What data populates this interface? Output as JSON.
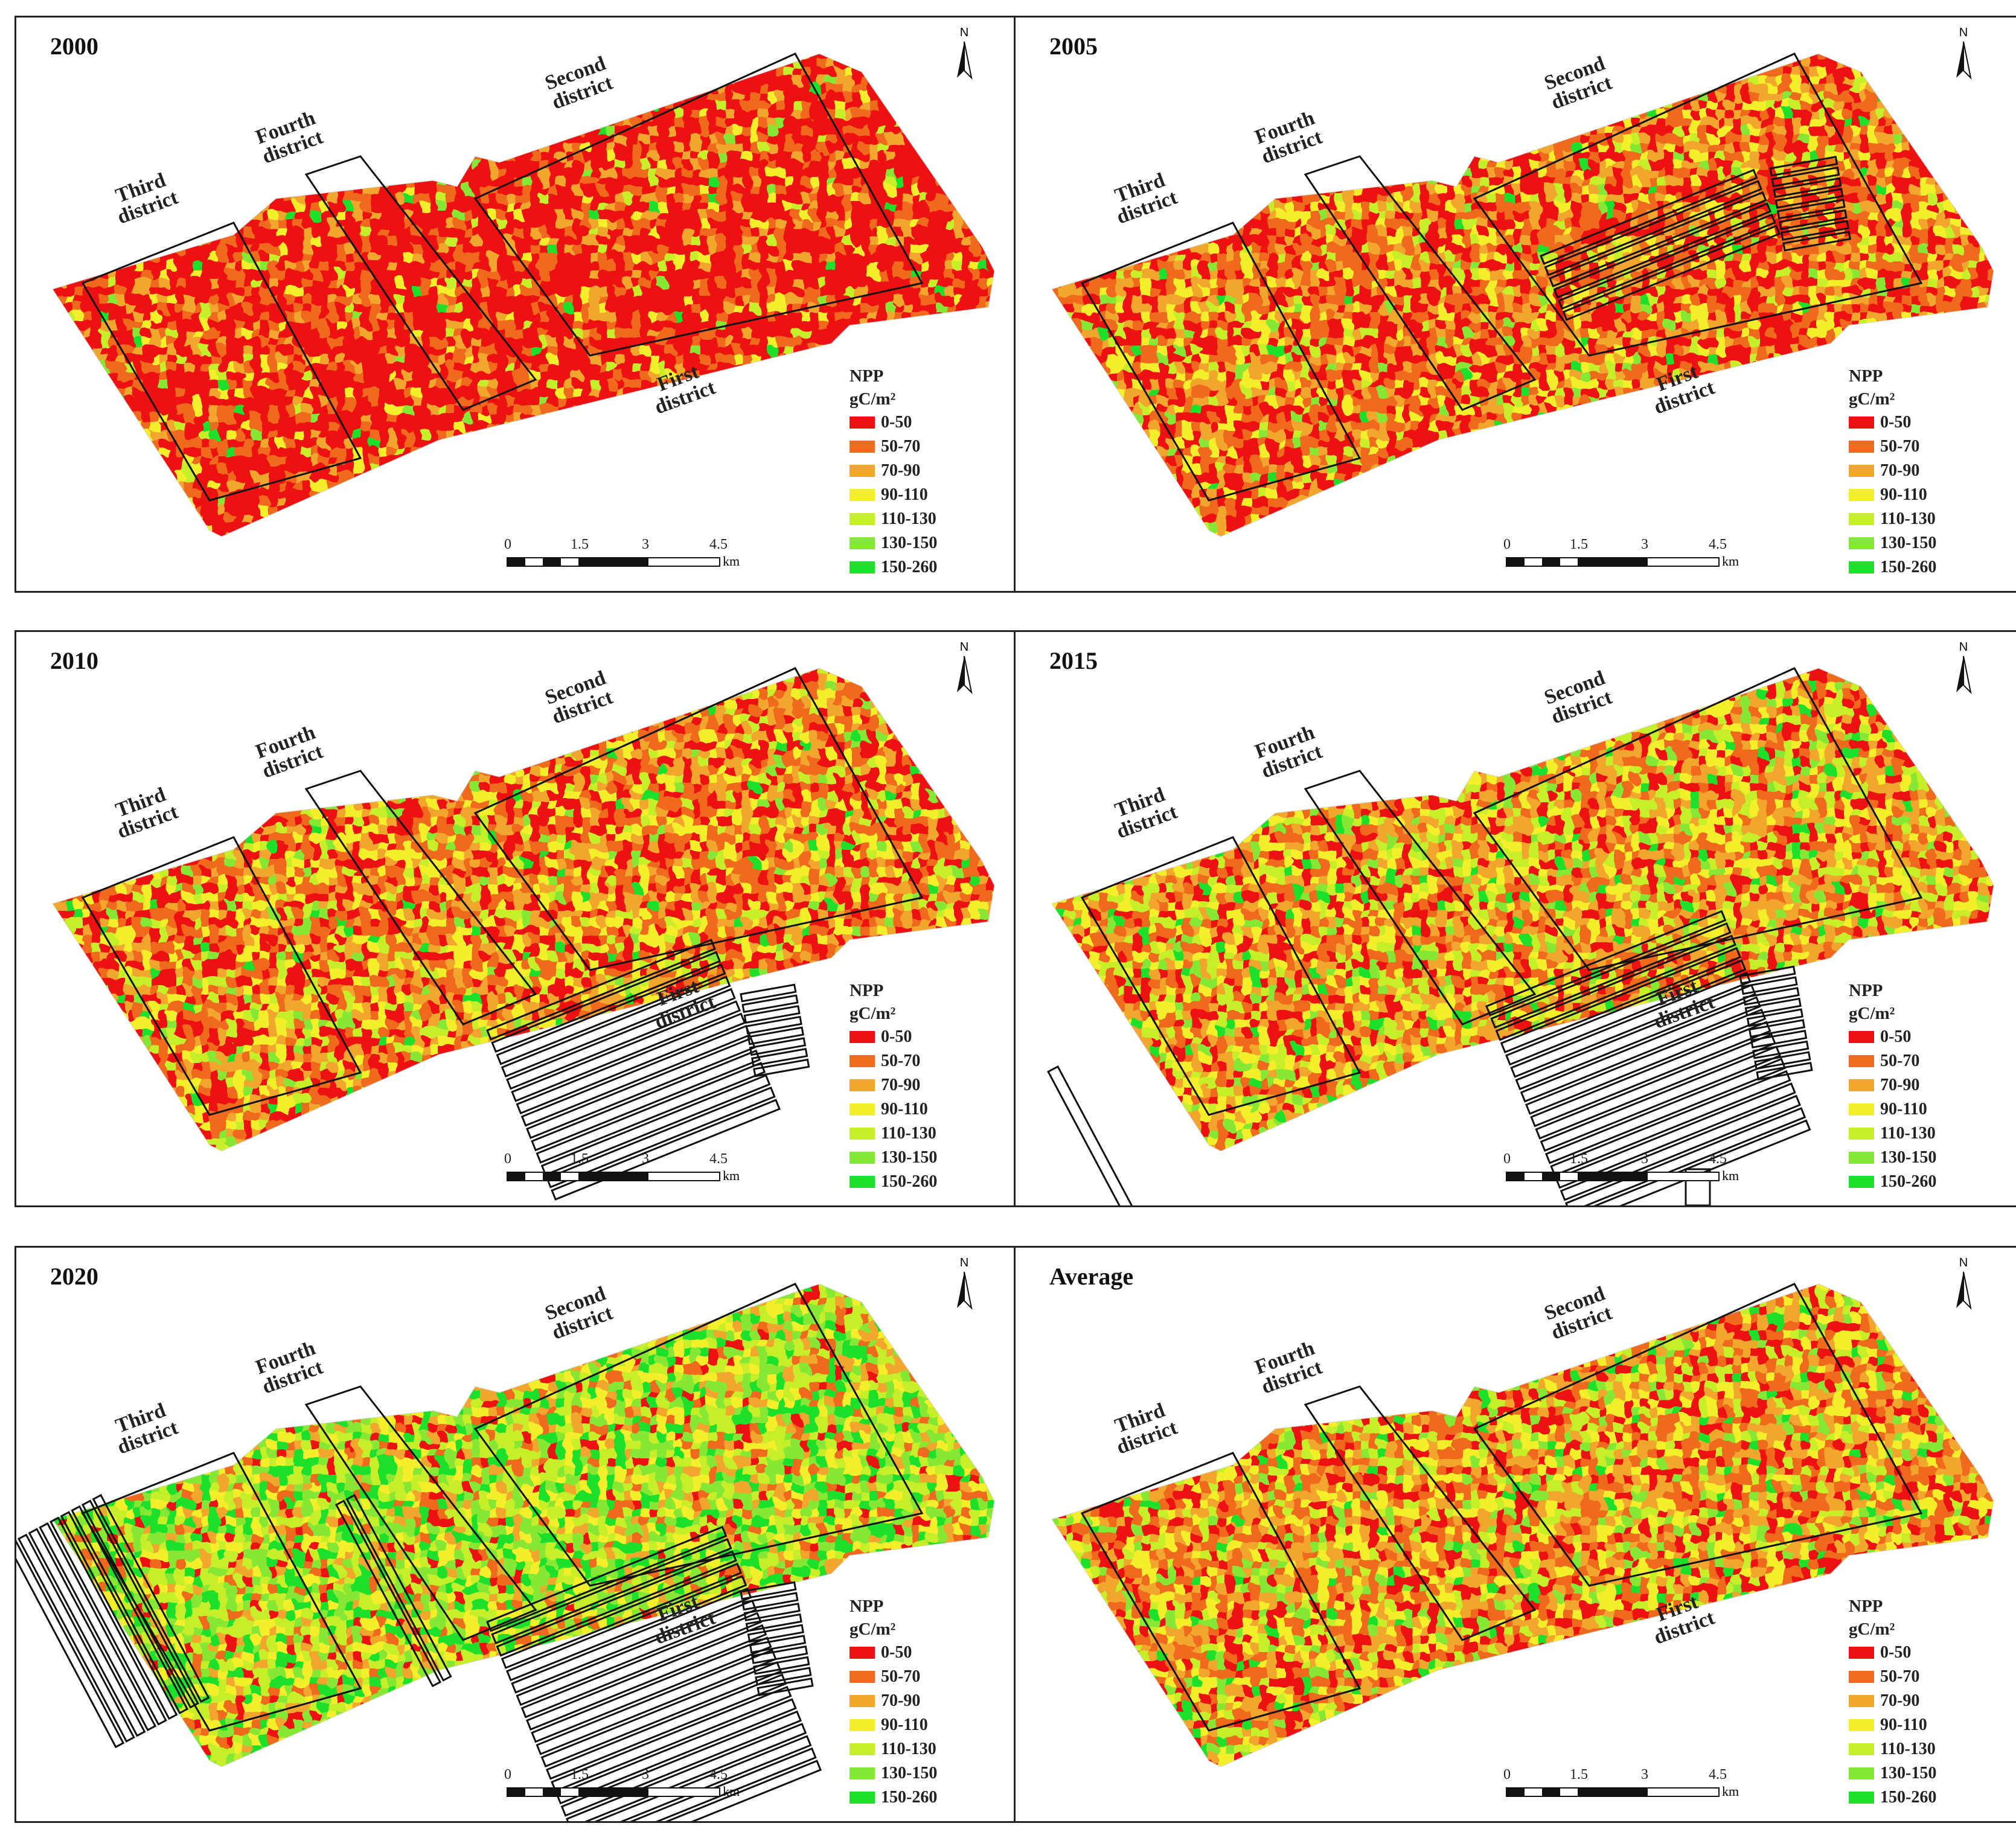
{
  "figure": {
    "legend_title": "NPP",
    "legend_unit": "gC/m²",
    "classes": [
      {
        "label": "0-50",
        "color": "#ee1111"
      },
      {
        "label": "50-70",
        "color": "#ef6b1f"
      },
      {
        "label": "70-90",
        "color": "#f3a62d"
      },
      {
        "label": "90-110",
        "color": "#f5ee2a"
      },
      {
        "label": "110-130",
        "color": "#c6ef2b"
      },
      {
        "label": "130-150",
        "color": "#86e836"
      },
      {
        "label": "150-260",
        "color": "#1fe02a"
      }
    ],
    "scale": {
      "ticks": [
        "0",
        "1.5",
        "3",
        "4.5"
      ],
      "unit": "km"
    },
    "north_label": "N",
    "districts": {
      "third": [
        "Third",
        "district"
      ],
      "fourth": [
        "Fourth",
        "district"
      ],
      "second": [
        "Second",
        "district"
      ],
      "first": [
        "First",
        "district"
      ]
    }
  },
  "panels": [
    {
      "title": "2000",
      "tone": [
        0.62,
        0.18,
        0.1,
        0.05,
        0.03,
        0.01,
        0.01
      ]
    },
    {
      "title": "2005",
      "tone": [
        0.35,
        0.25,
        0.18,
        0.12,
        0.06,
        0.03,
        0.01
      ]
    },
    {
      "title": "2010",
      "tone": [
        0.3,
        0.22,
        0.18,
        0.15,
        0.09,
        0.04,
        0.02
      ]
    },
    {
      "title": "2015",
      "tone": [
        0.18,
        0.2,
        0.2,
        0.18,
        0.13,
        0.07,
        0.04
      ]
    },
    {
      "title": "2020",
      "tone": [
        0.08,
        0.08,
        0.1,
        0.15,
        0.22,
        0.2,
        0.17
      ]
    },
    {
      "title": "Average",
      "tone": [
        0.2,
        0.22,
        0.18,
        0.17,
        0.12,
        0.07,
        0.04
      ]
    }
  ]
}
